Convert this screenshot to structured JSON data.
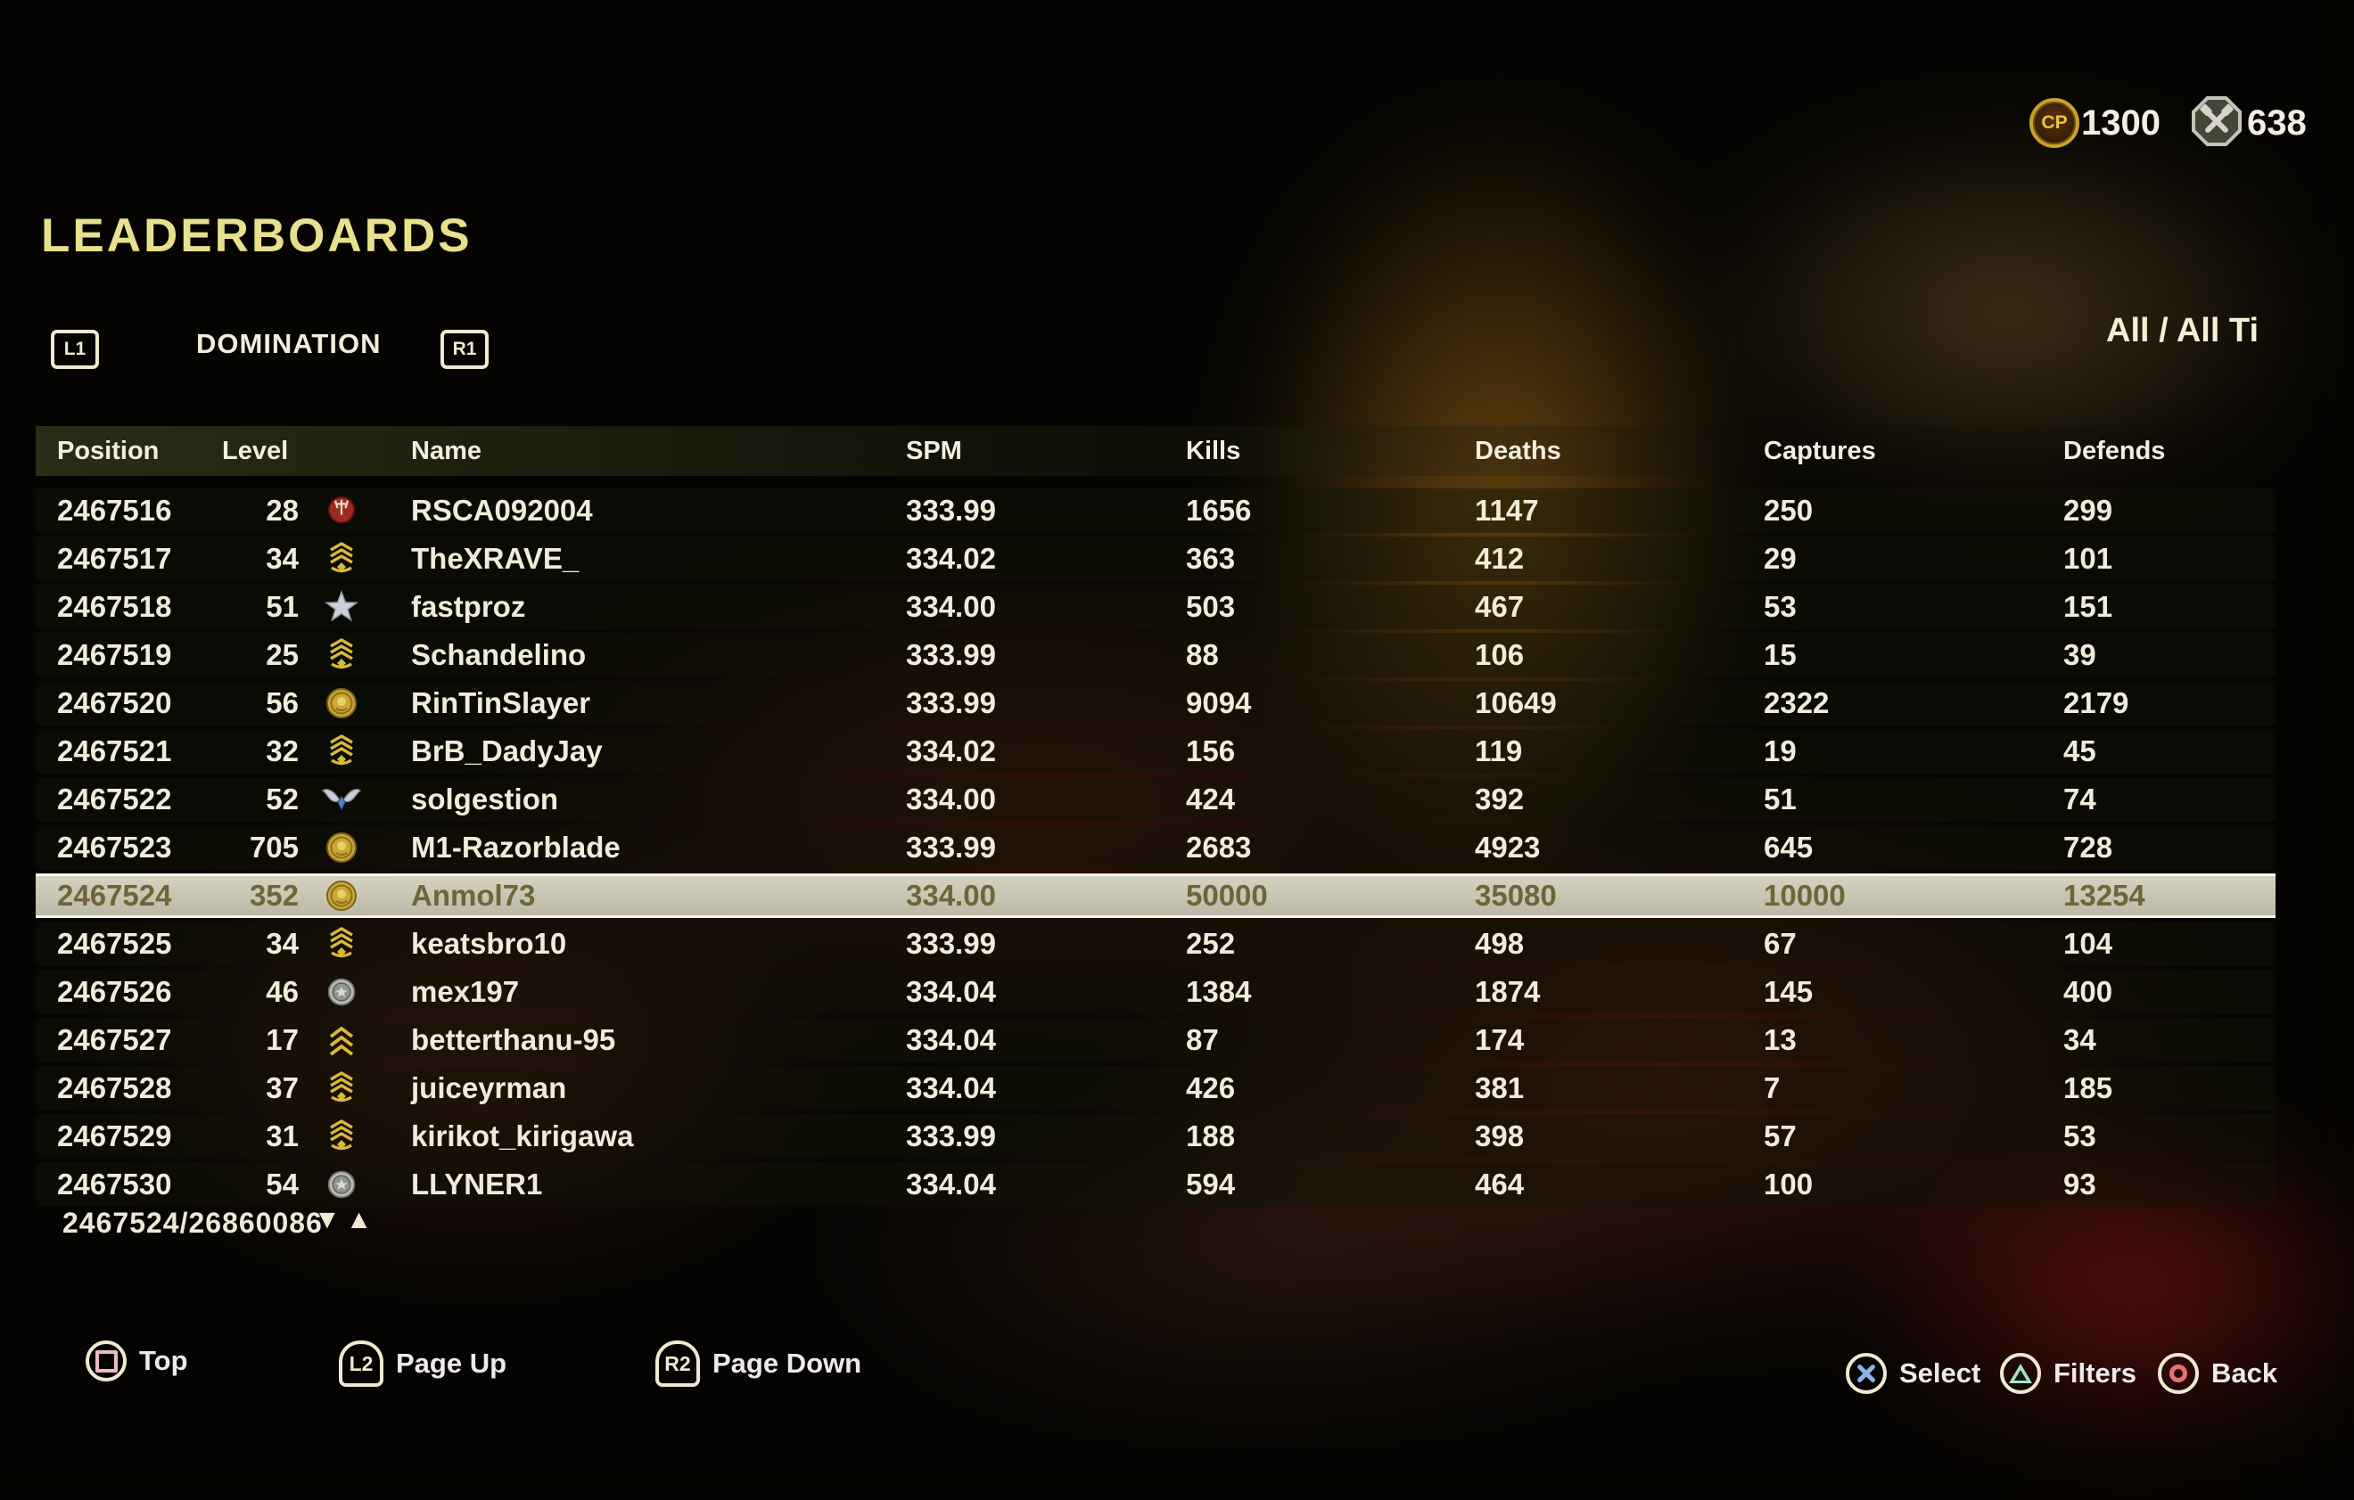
{
  "currencies": {
    "cp_label": "CP",
    "cp_value": "1300",
    "parts_value": "638"
  },
  "page_title": "LEADERBOARDS",
  "tabs": {
    "prev_shoulder": "L1",
    "mode": "DOMINATION",
    "next_shoulder": "R1",
    "scope": "All / All Ti"
  },
  "table": {
    "headers": [
      "Position",
      "Level",
      "Name",
      "SPM",
      "Kills",
      "Deaths",
      "Captures",
      "Defends"
    ],
    "rows": [
      {
        "position": "2467516",
        "level": "28",
        "rank_icon": "rank-red-crest",
        "name": "RSCA092004",
        "spm": "333.99",
        "kills": "1656",
        "deaths": "1147",
        "captures": "250",
        "defends": "299",
        "highlighted": false
      },
      {
        "position": "2467517",
        "level": "34",
        "rank_icon": "rank-gold-chevrons-diamond",
        "name": "TheXRAVE_",
        "spm": "334.02",
        "kills": "363",
        "deaths": "412",
        "captures": "29",
        "defends": "101",
        "highlighted": false
      },
      {
        "position": "2467518",
        "level": "51",
        "rank_icon": "rank-silver-star",
        "name": "fastproz",
        "spm": "334.00",
        "kills": "503",
        "deaths": "467",
        "captures": "53",
        "defends": "151",
        "highlighted": false
      },
      {
        "position": "2467519",
        "level": "25",
        "rank_icon": "rank-gold-chevrons-diamond",
        "name": "Schandelino",
        "spm": "333.99",
        "kills": "88",
        "deaths": "106",
        "captures": "15",
        "defends": "39",
        "highlighted": false
      },
      {
        "position": "2467520",
        "level": "56",
        "rank_icon": "rank-gold-medal",
        "name": "RinTinSlayer",
        "spm": "333.99",
        "kills": "9094",
        "deaths": "10649",
        "captures": "2322",
        "defends": "2179",
        "highlighted": false
      },
      {
        "position": "2467521",
        "level": "32",
        "rank_icon": "rank-gold-chevrons-diamond",
        "name": "BrB_DadyJay",
        "spm": "334.02",
        "kills": "156",
        "deaths": "119",
        "captures": "19",
        "defends": "45",
        "highlighted": false
      },
      {
        "position": "2467522",
        "level": "52",
        "rank_icon": "rank-silver-wings",
        "name": "solgestion",
        "spm": "334.00",
        "kills": "424",
        "deaths": "392",
        "captures": "51",
        "defends": "74",
        "highlighted": false
      },
      {
        "position": "2467523",
        "level": "705",
        "rank_icon": "rank-gold-medal",
        "name": "M1-Razorblade",
        "spm": "333.99",
        "kills": "2683",
        "deaths": "4923",
        "captures": "645",
        "defends": "728",
        "highlighted": false
      },
      {
        "position": "2467524",
        "level": "352",
        "rank_icon": "rank-gold-medal",
        "name": "Anmol73",
        "spm": "334.00",
        "kills": "50000",
        "deaths": "35080",
        "captures": "10000",
        "defends": "13254",
        "highlighted": true
      },
      {
        "position": "2467525",
        "level": "34",
        "rank_icon": "rank-gold-chevrons-diamond",
        "name": "keatsbro10",
        "spm": "333.99",
        "kills": "252",
        "deaths": "498",
        "captures": "67",
        "defends": "104",
        "highlighted": false
      },
      {
        "position": "2467526",
        "level": "46",
        "rank_icon": "rank-silver-medal",
        "name": "mex197",
        "spm": "334.04",
        "kills": "1384",
        "deaths": "1874",
        "captures": "145",
        "defends": "400",
        "highlighted": false
      },
      {
        "position": "2467527",
        "level": "17",
        "rank_icon": "rank-gold-chevrons",
        "name": "betterthanu-95",
        "spm": "334.04",
        "kills": "87",
        "deaths": "174",
        "captures": "13",
        "defends": "34",
        "highlighted": false
      },
      {
        "position": "2467528",
        "level": "37",
        "rank_icon": "rank-gold-chevrons-diamond",
        "name": "juiceyrman",
        "spm": "334.04",
        "kills": "426",
        "deaths": "381",
        "captures": "7",
        "defends": "185",
        "highlighted": false
      },
      {
        "position": "2467529",
        "level": "31",
        "rank_icon": "rank-gold-chevrons-diamond",
        "name": "kirikot_kirigawa",
        "spm": "333.99",
        "kills": "188",
        "deaths": "398",
        "captures": "57",
        "defends": "53",
        "highlighted": false
      },
      {
        "position": "2467530",
        "level": "54",
        "rank_icon": "rank-silver-medal",
        "name": "LLYNER1",
        "spm": "334.04",
        "kills": "594",
        "deaths": "464",
        "captures": "100",
        "defends": "93",
        "highlighted": false
      }
    ]
  },
  "pagination": {
    "status": "2467524/26860086",
    "down_arrow": "▼",
    "up_arrow": "▲"
  },
  "controls": {
    "left": [
      {
        "button": "square",
        "label": "Top"
      },
      {
        "button": "L2",
        "label": "Page Up"
      },
      {
        "button": "R2",
        "label": "Page Down"
      }
    ],
    "right": [
      {
        "button": "cross",
        "label": "Select"
      },
      {
        "button": "triangle",
        "label": "Filters"
      },
      {
        "button": "circle",
        "label": "Back"
      }
    ]
  },
  "colors": {
    "title": "#e9e08d",
    "row_text": "#f1ecd9",
    "highlight_bg": "#c9c5b4",
    "highlight_text": "#6e6539",
    "cross_blue": "#8db4e8",
    "triangle_green": "#9fe6c0",
    "circle_red": "#e87070",
    "square_pink": "#e9b9c6"
  }
}
